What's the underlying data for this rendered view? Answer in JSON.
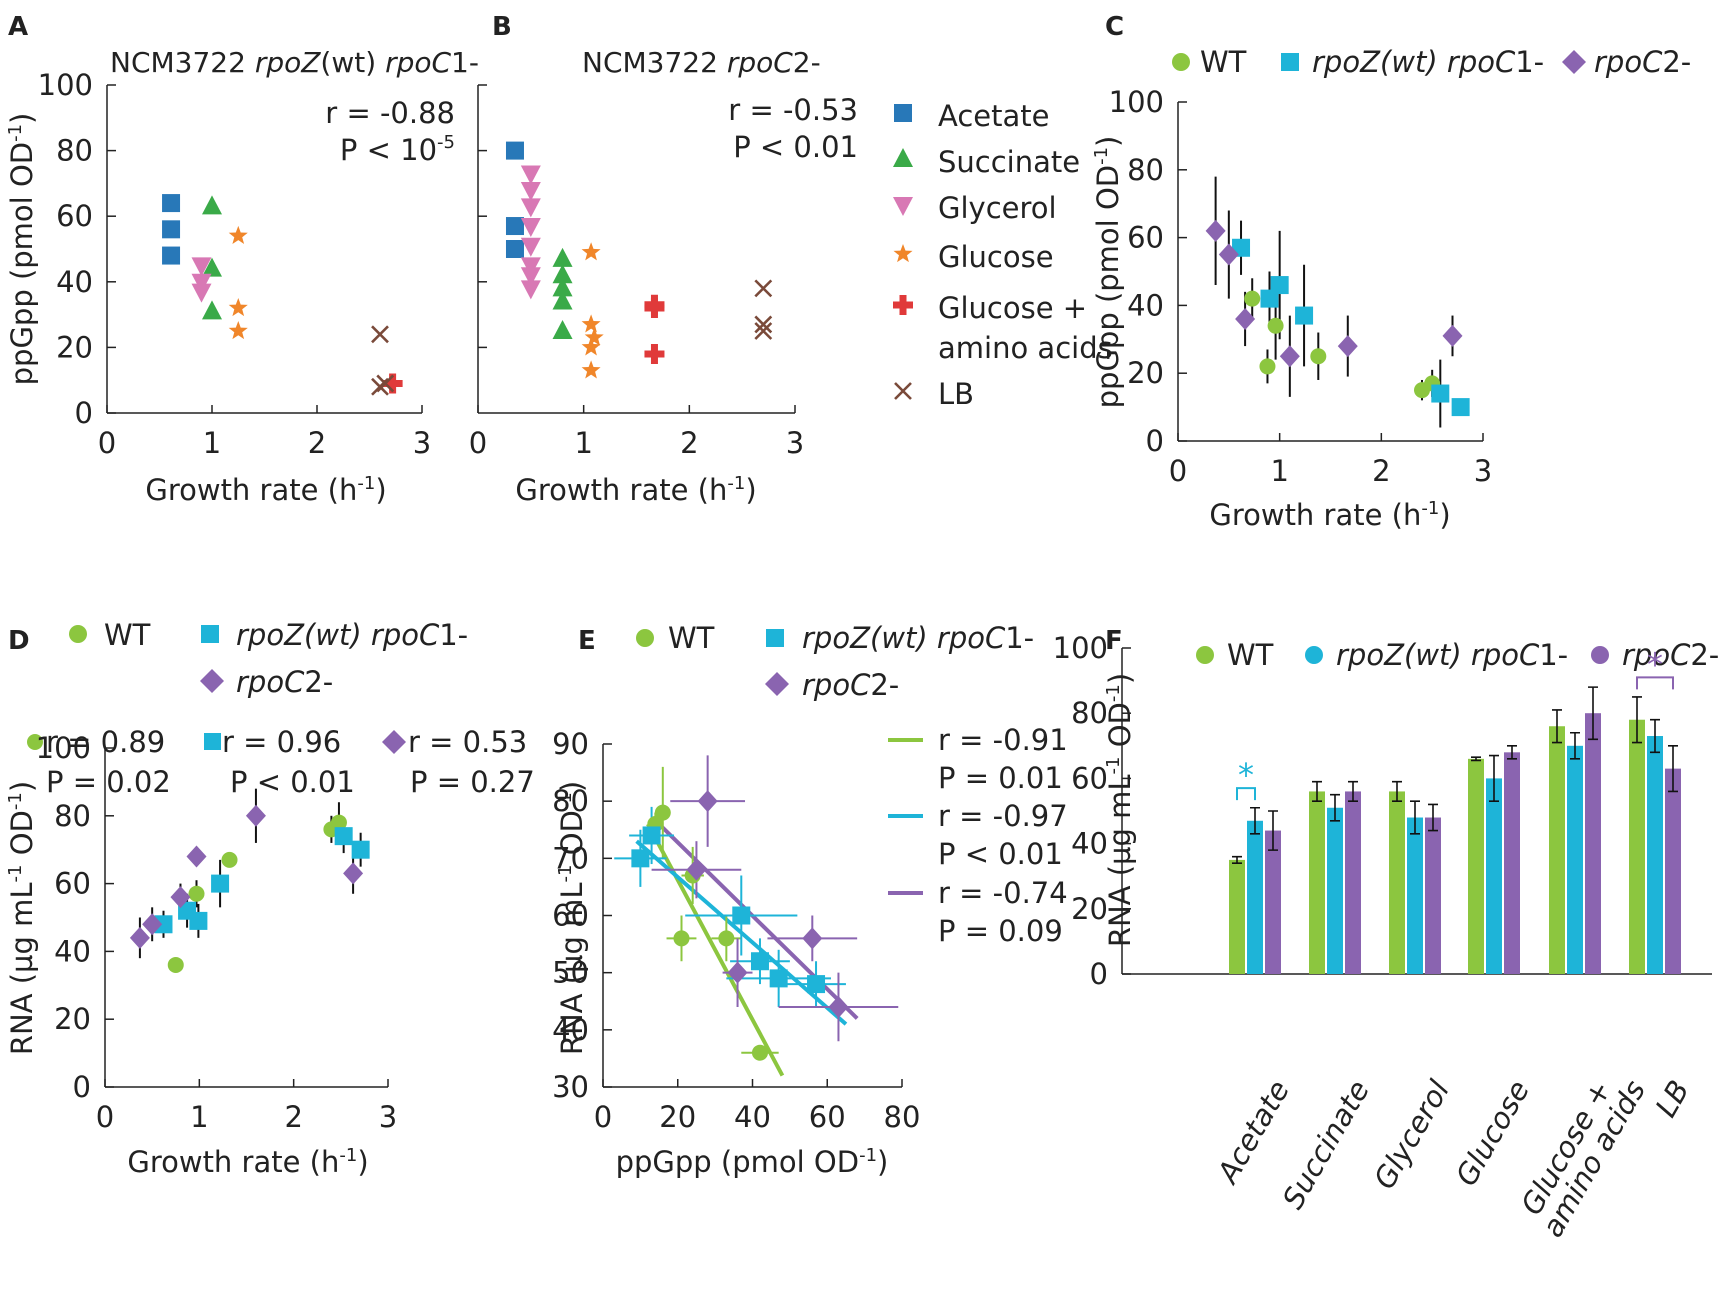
{
  "colors": {
    "acetate": "#2878b8",
    "succinate": "#3aaa48",
    "glycerol": "#d878b4",
    "glucose": "#f0862a",
    "glcaa": "#e03a3a",
    "lb": "#7a4a3a",
    "wt": "#8cc63f",
    "rpoz": "#1eb4d8",
    "rpoc2": "#8a64b0"
  },
  "xlabel_growth": "Growth rate (h-1)",
  "xlabel_ppgpp": "ppGpp (pmol OD-1)",
  "ylabel_ppgpp": "ppGpp (pmol OD-1)",
  "ylabel_rna": "RNA (µg mL-1 OD-1)",
  "strain_labels": {
    "wt": "WT",
    "rpoz_parts": [
      "rpoZ",
      "(wt) ",
      "rpoC",
      "1-"
    ],
    "rpoc2_parts": [
      "rpoC",
      "2-"
    ]
  },
  "panel_A": {
    "label": "A",
    "title_parts": [
      "NCM3722 ",
      "rpoZ",
      "(wt) ",
      "rpoC",
      "1-"
    ],
    "stat_r": "r = -0.88",
    "stat_p": "P < 10",
    "stat_p_exp": "-5"
  },
  "panel_B": {
    "label": "B",
    "title_parts": [
      "NCM3722 ",
      "rpoC",
      "2-"
    ],
    "stat_r": "r = -0.53",
    "stat_p": "P < 0.01",
    "legend": [
      "Acetate",
      "Succinate",
      "Glycerol",
      "Glucose",
      "Glucose +",
      "amino acids",
      "LB"
    ]
  },
  "panel_C": {
    "label": "C"
  },
  "panel_D": {
    "label": "D",
    "stats": [
      {
        "r": "r = 0.89",
        "p": "P = 0.02"
      },
      {
        "r": "r = 0.96",
        "p": "P < 0.01"
      },
      {
        "r": "r = 0.53",
        "p": "P = 0.27"
      }
    ]
  },
  "panel_E": {
    "label": "E",
    "stats": [
      {
        "r": "r = -0.91",
        "p": "P = 0.01"
      },
      {
        "r": "r = -0.97",
        "p": "P < 0.01"
      },
      {
        "r": "r = -0.74",
        "p": "P = 0.09"
      }
    ]
  },
  "panel_F": {
    "label": "F",
    "star": "*",
    "categories": [
      "Acetate",
      "Succinate",
      "Glycerol",
      "Glucose",
      "Glucose +",
      "amino acids",
      "LB"
    ]
  },
  "chart_data": [
    {
      "id": "A",
      "type": "scatter",
      "title": "NCM3722 rpoZ(wt) rpoC1-",
      "xlabel": "Growth rate (h-1)",
      "ylabel": "ppGpp (pmol OD-1)",
      "xlim": [
        0,
        3
      ],
      "ylim": [
        0,
        100
      ],
      "xticks": [
        0,
        1,
        2,
        3
      ],
      "yticks": [
        0,
        20,
        40,
        60,
        80,
        100
      ],
      "series": [
        {
          "name": "Acetate",
          "marker": "square",
          "color_key": "acetate",
          "points": [
            [
              0.61,
              64
            ],
            [
              0.61,
              56
            ],
            [
              0.61,
              48
            ]
          ]
        },
        {
          "name": "Succinate",
          "marker": "triangle",
          "color_key": "succinate",
          "points": [
            [
              1.0,
              63
            ],
            [
              1.0,
              44
            ],
            [
              1.0,
              31
            ]
          ]
        },
        {
          "name": "Glycerol",
          "marker": "tridown",
          "color_key": "glycerol",
          "points": [
            [
              0.9,
              45
            ],
            [
              0.9,
              40
            ],
            [
              0.9,
              37
            ]
          ]
        },
        {
          "name": "Glucose",
          "marker": "star",
          "color_key": "glucose",
          "points": [
            [
              1.25,
              54
            ],
            [
              1.25,
              32
            ],
            [
              1.25,
              25
            ]
          ]
        },
        {
          "name": "Glucose + amino acids",
          "marker": "plus",
          "color_key": "glcaa",
          "points": [
            [
              2.72,
              9
            ]
          ]
        },
        {
          "name": "LB",
          "marker": "x",
          "color_key": "lb",
          "points": [
            [
              2.6,
              24
            ],
            [
              2.6,
              8
            ],
            [
              2.65,
              9
            ]
          ]
        }
      ]
    },
    {
      "id": "B",
      "type": "scatter",
      "title": "NCM3722 rpoC2-",
      "xlabel": "Growth rate (h-1)",
      "ylabel": "",
      "xlim": [
        0,
        3
      ],
      "ylim": [
        0,
        100
      ],
      "xticks": [
        0,
        1,
        2,
        3
      ],
      "yticks": [],
      "series": [
        {
          "name": "Acetate",
          "marker": "square",
          "color_key": "acetate",
          "points": [
            [
              0.35,
              80
            ],
            [
              0.35,
              57
            ],
            [
              0.35,
              50
            ]
          ]
        },
        {
          "name": "Succinate",
          "marker": "triangle",
          "color_key": "succinate",
          "points": [
            [
              0.8,
              47
            ],
            [
              0.8,
              42
            ],
            [
              0.8,
              38
            ],
            [
              0.8,
              34
            ],
            [
              0.8,
              25
            ]
          ]
        },
        {
          "name": "Glycerol",
          "marker": "tridown",
          "color_key": "glycerol",
          "points": [
            [
              0.5,
              73
            ],
            [
              0.5,
              68
            ],
            [
              0.5,
              63
            ],
            [
              0.5,
              57
            ],
            [
              0.5,
              51
            ],
            [
              0.5,
              45
            ],
            [
              0.5,
              42
            ],
            [
              0.5,
              38
            ]
          ]
        },
        {
          "name": "Glucose",
          "marker": "star",
          "color_key": "glucose",
          "points": [
            [
              1.07,
              49
            ],
            [
              1.07,
              27
            ],
            [
              1.1,
              23
            ],
            [
              1.07,
              20
            ],
            [
              1.07,
              13
            ]
          ]
        },
        {
          "name": "Glucose + amino acids",
          "marker": "plus",
          "color_key": "glcaa",
          "points": [
            [
              1.67,
              33
            ],
            [
              1.67,
              32
            ],
            [
              1.67,
              18
            ]
          ]
        },
        {
          "name": "LB",
          "marker": "x",
          "color_key": "lb",
          "points": [
            [
              2.7,
              38
            ],
            [
              2.7,
              27
            ],
            [
              2.7,
              25
            ]
          ]
        }
      ]
    },
    {
      "id": "C",
      "type": "scatter",
      "xlabel": "Growth rate (h-1)",
      "ylabel": "ppGpp (pmol OD-1)",
      "xlim": [
        0,
        3
      ],
      "ylim": [
        0,
        100
      ],
      "xticks": [
        0,
        1,
        2,
        3
      ],
      "yticks": [
        0,
        20,
        40,
        60,
        80,
        100
      ],
      "series": [
        {
          "name": "WT",
          "marker": "circle",
          "color_key": "wt",
          "points": [
            [
              0.73,
              42,
              0,
              6
            ],
            [
              0.88,
              22,
              0,
              5
            ],
            [
              0.96,
              34,
              0,
              10
            ],
            [
              1.38,
              25,
              0,
              7
            ],
            [
              2.4,
              15,
              0,
              3
            ],
            [
              2.5,
              17,
              0,
              4
            ]
          ]
        },
        {
          "name": "rpoZ(wt) rpoC1-",
          "marker": "square",
          "color_key": "rpoz",
          "points": [
            [
              0.62,
              57,
              0,
              8
            ],
            [
              0.9,
              42,
              0,
              8
            ],
            [
              1.0,
              46,
              0,
              16
            ],
            [
              1.24,
              37,
              0,
              15
            ],
            [
              2.58,
              14,
              0,
              10
            ],
            [
              2.78,
              10,
              0,
              0
            ]
          ]
        },
        {
          "name": "rpoC2-",
          "marker": "diamond",
          "color_key": "rpoc2",
          "points": [
            [
              0.37,
              62,
              0,
              16
            ],
            [
              0.5,
              55,
              0,
              13
            ],
            [
              0.66,
              36,
              0,
              8
            ],
            [
              1.1,
              25,
              0,
              12
            ],
            [
              1.67,
              28,
              0,
              9
            ],
            [
              2.7,
              31,
              0,
              6
            ]
          ]
        }
      ]
    },
    {
      "id": "D",
      "type": "scatter",
      "xlabel": "Growth rate (h-1)",
      "ylabel": "RNA (µg mL-1 OD-1)",
      "xlim": [
        0,
        3
      ],
      "ylim": [
        0,
        100
      ],
      "xticks": [
        0,
        1,
        2,
        3
      ],
      "yticks": [
        0,
        20,
        40,
        60,
        80,
        100
      ],
      "series": [
        {
          "name": "WT",
          "marker": "circle",
          "color_key": "wt",
          "points": [
            [
              0.75,
              36,
              0,
              0
            ],
            [
              0.97,
              57,
              0,
              4
            ],
            [
              1.32,
              67,
              0,
              0
            ],
            [
              2.4,
              76,
              0,
              4
            ],
            [
              2.48,
              78,
              0,
              6
            ]
          ]
        },
        {
          "name": "rpoZ(wt) rpoC1-",
          "marker": "square",
          "color_key": "rpoz",
          "points": [
            [
              0.62,
              48,
              0,
              4
            ],
            [
              0.87,
              52,
              0,
              5
            ],
            [
              0.99,
              49,
              0,
              5
            ],
            [
              1.22,
              60,
              0,
              7
            ],
            [
              2.53,
              74,
              0,
              5
            ],
            [
              2.71,
              70,
              0,
              5
            ]
          ]
        },
        {
          "name": "rpoC2-",
          "marker": "diamond",
          "color_key": "rpoc2",
          "points": [
            [
              0.37,
              44,
              0,
              6
            ],
            [
              0.5,
              48,
              0,
              5
            ],
            [
              0.8,
              56,
              0,
              4
            ],
            [
              0.97,
              68,
              0,
              0
            ],
            [
              1.6,
              80,
              0,
              8
            ],
            [
              2.63,
              63,
              0,
              6
            ]
          ]
        }
      ]
    },
    {
      "id": "E",
      "type": "scatter",
      "xlabel": "ppGpp (pmol OD-1)",
      "ylabel": "RNA (µg mL-1 OD-1)",
      "xlim": [
        0,
        80
      ],
      "ylim": [
        30,
        90
      ],
      "xticks": [
        0,
        20,
        40,
        60,
        80
      ],
      "yticks": [
        30,
        40,
        50,
        60,
        70,
        80,
        90
      ],
      "series": [
        {
          "name": "WT",
          "marker": "circle",
          "color_key": "wt",
          "points": [
            [
              16,
              78,
              2,
              8
            ],
            [
              14,
              76,
              2,
              2
            ],
            [
              24,
              67,
              3,
              5
            ],
            [
              21,
              56,
              4,
              4
            ],
            [
              33,
              56,
              4,
              4
            ],
            [
              42,
              36,
              5,
              0
            ]
          ],
          "fit": [
            [
              12,
              76
            ],
            [
              48,
              32
            ]
          ]
        },
        {
          "name": "rpoZ(wt) rpoC1-",
          "marker": "square",
          "color_key": "rpoz",
          "points": [
            [
              10,
              70,
              7,
              5
            ],
            [
              13,
              74,
              6,
              5
            ],
            [
              37,
              60,
              15,
              7
            ],
            [
              42,
              52,
              8,
              4
            ],
            [
              47,
              49,
              14,
              5
            ],
            [
              57,
              48,
              8,
              4
            ]
          ],
          "fit": [
            [
              9,
              73
            ],
            [
              65,
              41
            ]
          ]
        },
        {
          "name": "rpoC2-",
          "marker": "diamond",
          "color_key": "rpoc2",
          "points": [
            [
              28,
              80,
              10,
              8
            ],
            [
              25,
              68,
              12,
              5
            ],
            [
              36,
              50,
              4,
              6
            ],
            [
              56,
              56,
              12,
              4
            ],
            [
              63,
              44,
              16,
              6
            ]
          ],
          "fit": [
            [
              15,
              76
            ],
            [
              68,
              42
            ]
          ]
        }
      ]
    },
    {
      "id": "F",
      "type": "bar",
      "ylabel": "RNA (µg mL-1 OD-1)",
      "ylim": [
        0,
        100
      ],
      "yticks": [
        0,
        20,
        40,
        60,
        80,
        100
      ],
      "categories": [
        "Acetate",
        "Succinate",
        "Glycerol",
        "Glucose",
        "Glucose + amino acids",
        "LB"
      ],
      "series": [
        {
          "name": "WT",
          "color_key": "wt",
          "values": [
            35,
            56,
            56,
            66,
            76,
            78
          ],
          "errors": [
            1,
            3,
            3,
            0.5,
            5,
            7
          ]
        },
        {
          "name": "rpoZ(wt) rpoC1-",
          "color_key": "rpoz",
          "values": [
            47,
            51,
            48,
            60,
            70,
            73
          ],
          "errors": [
            4,
            4,
            5,
            7,
            4,
            5
          ]
        },
        {
          "name": "rpoC2-",
          "color_key": "rpoc2",
          "values": [
            44,
            56,
            48,
            68,
            80,
            63
          ],
          "errors": [
            6,
            3,
            4,
            2,
            8,
            7
          ]
        }
      ],
      "significance": [
        {
          "category": "Acetate",
          "between": [
            "WT",
            "rpoZ(wt) rpoC1-"
          ],
          "label": "*",
          "color_key": "rpoz"
        },
        {
          "category": "LB",
          "between": [
            "WT",
            "rpoC2-"
          ],
          "label": "*",
          "color_key": "rpoc2"
        }
      ]
    }
  ]
}
